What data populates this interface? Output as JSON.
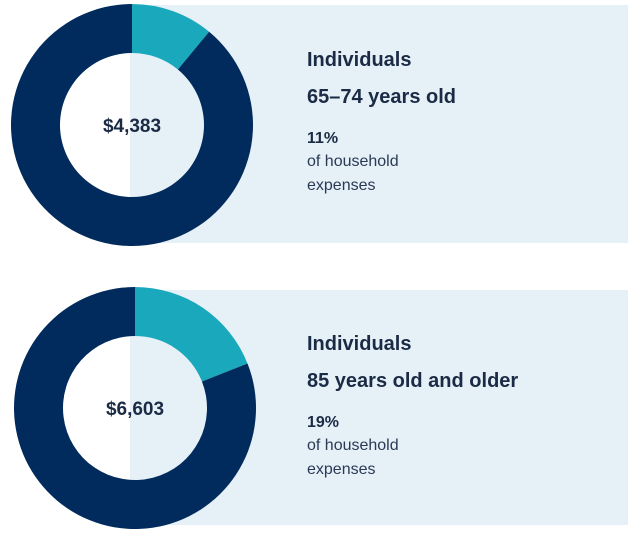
{
  "chart_data": [
    {
      "type": "pie",
      "title": "Individuals",
      "subtitle": "65–74 years old",
      "center_label": "$4,383",
      "values": [
        11,
        89
      ],
      "value_labels": [
        "11%",
        null
      ],
      "caption": "of household expenses",
      "colors": [
        "#1aa9bc",
        "#002b5c"
      ]
    },
    {
      "type": "pie",
      "title": "Individuals",
      "subtitle": "85 years old and older",
      "center_label": "$6,603",
      "values": [
        19,
        81
      ],
      "value_labels": [
        "19%",
        null
      ],
      "caption": "of household expenses",
      "colors": [
        "#1aa9bc",
        "#002b5c"
      ]
    }
  ]
}
